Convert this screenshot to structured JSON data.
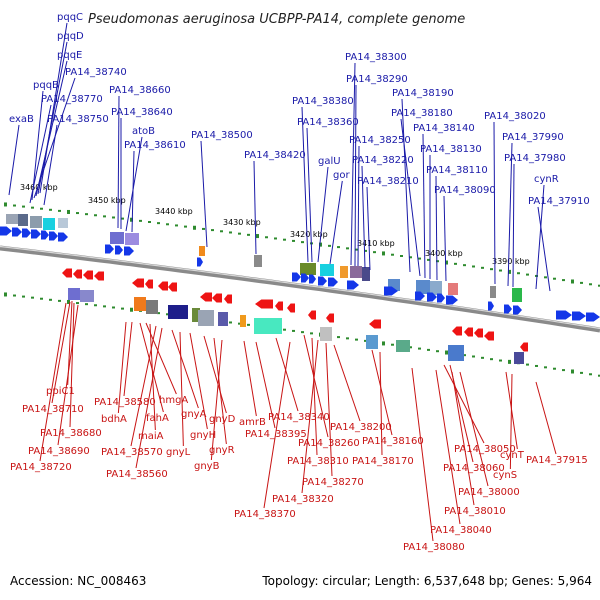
{
  "title": "Pseudomonas aeruginosa UCBPP-PA14, complete genome",
  "footer": {
    "accession": "Accession: NC_008463",
    "topology": "Topology: circular; Length: 6,537,648 bp; Genes: 5,964"
  },
  "colors": {
    "forward": "#1437e8",
    "reverse": "#ee1414",
    "top_line": "#1a1aa8",
    "bottom_line": "#c81414",
    "backbone": "#8a8a8a",
    "tick": "#2e8b2e"
  },
  "scale_ticks": [
    "3460 kbp",
    "3450 kbp",
    "3440 kbp",
    "3430 kbp",
    "3420 kbp",
    "3410 kbp",
    "3400 kbp",
    "3390 kbp"
  ],
  "top_labels": [
    "pqqC",
    "pqqD",
    "pqqE",
    "PA14_38740",
    "pqqB",
    "PA14_38770",
    "exaB",
    "PA14_38750",
    "PA14_38660",
    "PA14_38640",
    "atoB",
    "PA14_38610",
    "PA14_38500",
    "PA14_38420",
    "PA14_38380",
    "PA14_38360",
    "galU",
    "gor",
    "PA14_38300",
    "PA14_38290",
    "PA14_38250",
    "PA14_38220",
    "PA14_38210",
    "PA14_38190",
    "PA14_38180",
    "PA14_38140",
    "PA14_38130",
    "PA14_38110",
    "PA14_38090",
    "PA14_38020",
    "PA14_37990",
    "PA14_37980",
    "cynR",
    "PA14_37910"
  ],
  "bottom_labels": [
    "ppiC1",
    "PA14_38710",
    "PA14_38680",
    "PA14_38690",
    "PA14_38720",
    "bdhA",
    "PA14_38580",
    "fahA",
    "hmgA",
    "maiA",
    "PA14_38570",
    "PA14_38560",
    "gnyA",
    "gnyL",
    "gnyH",
    "gnyD",
    "gnyR",
    "gnyB",
    "amrB",
    "PA14_38395",
    "PA14_38340",
    "PA14_38370",
    "PA14_38260",
    "PA14_38310",
    "PA14_38320",
    "PA14_38270",
    "PA14_38200",
    "PA14_38160",
    "PA14_38170",
    "PA14_38050",
    "PA14_38060",
    "PA14_38080",
    "PA14_38040",
    "PA14_38010",
    "PA14_38000",
    "cynT",
    "cynS",
    "PA14_37915"
  ]
}
